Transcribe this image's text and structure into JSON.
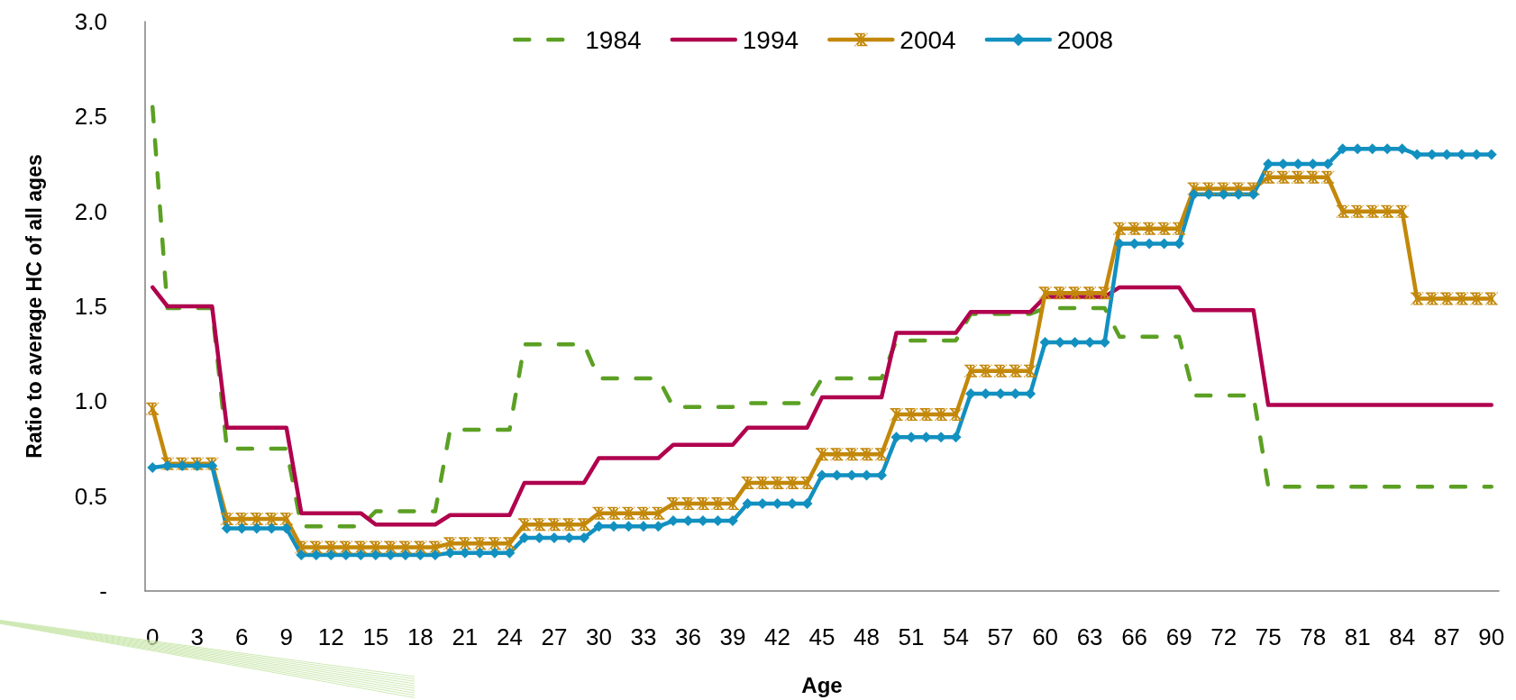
{
  "chart_data": {
    "type": "line",
    "xlabel": "Age",
    "ylabel": "Ratio to average HC of all ages",
    "x": [
      0,
      1,
      2,
      3,
      4,
      5,
      6,
      7,
      8,
      9,
      10,
      11,
      12,
      13,
      14,
      15,
      16,
      17,
      18,
      19,
      20,
      21,
      22,
      23,
      24,
      25,
      26,
      27,
      28,
      29,
      30,
      31,
      32,
      33,
      34,
      35,
      36,
      37,
      38,
      39,
      40,
      41,
      42,
      43,
      44,
      45,
      46,
      47,
      48,
      49,
      50,
      51,
      52,
      53,
      54,
      55,
      56,
      57,
      58,
      59,
      60,
      61,
      62,
      63,
      64,
      65,
      66,
      67,
      68,
      69,
      70,
      71,
      72,
      73,
      74,
      75,
      76,
      77,
      78,
      79,
      80,
      81,
      82,
      83,
      84,
      85,
      86,
      87,
      88,
      89,
      90
    ],
    "xlim": [
      -0.5,
      90.5
    ],
    "xticks": [
      0,
      3,
      6,
      9,
      12,
      15,
      18,
      21,
      24,
      27,
      30,
      33,
      36,
      39,
      42,
      45,
      48,
      51,
      54,
      57,
      60,
      63,
      66,
      69,
      72,
      75,
      78,
      81,
      84,
      87,
      90
    ],
    "ylim": [
      0,
      3
    ],
    "yticks": [
      {
        "value": 0,
        "label": "-"
      },
      0.5,
      {
        "value": 1,
        "label": "1.0"
      },
      1.5,
      {
        "value": 2,
        "label": "2.0"
      },
      2.5,
      {
        "value": 3,
        "label": "3.0"
      }
    ],
    "grid": false,
    "legend": "top",
    "series": [
      {
        "name": "1984",
        "color": "#5ba023",
        "line_style": "dashed",
        "marker": "none",
        "values": [
          2.55,
          1.49,
          1.49,
          1.49,
          1.49,
          0.75,
          0.75,
          0.75,
          0.75,
          0.75,
          0.34,
          0.34,
          0.34,
          0.34,
          0.34,
          0.42,
          0.42,
          0.42,
          0.42,
          0.42,
          0.85,
          0.85,
          0.85,
          0.85,
          0.85,
          1.3,
          1.3,
          1.3,
          1.3,
          1.3,
          1.12,
          1.12,
          1.12,
          1.12,
          1.12,
          0.97,
          0.97,
          0.97,
          0.97,
          0.97,
          0.99,
          0.99,
          0.99,
          0.99,
          0.99,
          1.12,
          1.12,
          1.12,
          1.12,
          1.12,
          1.32,
          1.32,
          1.32,
          1.32,
          1.32,
          1.46,
          1.46,
          1.46,
          1.46,
          1.46,
          1.49,
          1.49,
          1.49,
          1.49,
          1.49,
          1.34,
          1.34,
          1.34,
          1.34,
          1.34,
          1.03,
          1.03,
          1.03,
          1.03,
          1.03,
          0.55,
          0.55,
          0.55,
          0.55,
          0.55,
          0.55,
          0.55,
          0.55,
          0.55,
          0.55,
          0.55,
          0.55,
          0.55,
          0.55,
          0.55,
          0.55
        ]
      },
      {
        "name": "1994",
        "color": "#b0004e",
        "line_style": "solid",
        "marker": "none",
        "values": [
          1.6,
          1.5,
          1.5,
          1.5,
          1.5,
          0.86,
          0.86,
          0.86,
          0.86,
          0.86,
          0.41,
          0.41,
          0.41,
          0.41,
          0.41,
          0.35,
          0.35,
          0.35,
          0.35,
          0.35,
          0.4,
          0.4,
          0.4,
          0.4,
          0.4,
          0.57,
          0.57,
          0.57,
          0.57,
          0.57,
          0.7,
          0.7,
          0.7,
          0.7,
          0.7,
          0.77,
          0.77,
          0.77,
          0.77,
          0.77,
          0.86,
          0.86,
          0.86,
          0.86,
          0.86,
          1.02,
          1.02,
          1.02,
          1.02,
          1.02,
          1.36,
          1.36,
          1.36,
          1.36,
          1.36,
          1.47,
          1.47,
          1.47,
          1.47,
          1.47,
          1.55,
          1.55,
          1.55,
          1.55,
          1.55,
          1.6,
          1.6,
          1.6,
          1.6,
          1.6,
          1.48,
          1.48,
          1.48,
          1.48,
          1.48,
          0.98,
          0.98,
          0.98,
          0.98,
          0.98,
          0.98,
          0.98,
          0.98,
          0.98,
          0.98,
          0.98,
          0.98,
          0.98,
          0.98,
          0.98,
          0.98
        ]
      },
      {
        "name": "2004",
        "color": "#c3880a",
        "line_style": "solid",
        "marker": "star",
        "values": [
          0.96,
          0.67,
          0.67,
          0.67,
          0.67,
          0.38,
          0.38,
          0.38,
          0.38,
          0.38,
          0.23,
          0.23,
          0.23,
          0.23,
          0.23,
          0.23,
          0.23,
          0.23,
          0.23,
          0.23,
          0.25,
          0.25,
          0.25,
          0.25,
          0.25,
          0.35,
          0.35,
          0.35,
          0.35,
          0.35,
          0.41,
          0.41,
          0.41,
          0.41,
          0.41,
          0.46,
          0.46,
          0.46,
          0.46,
          0.46,
          0.57,
          0.57,
          0.57,
          0.57,
          0.57,
          0.72,
          0.72,
          0.72,
          0.72,
          0.72,
          0.93,
          0.93,
          0.93,
          0.93,
          0.93,
          1.16,
          1.16,
          1.16,
          1.16,
          1.16,
          1.57,
          1.57,
          1.57,
          1.57,
          1.57,
          1.91,
          1.91,
          1.91,
          1.91,
          1.91,
          2.12,
          2.12,
          2.12,
          2.12,
          2.12,
          2.18,
          2.18,
          2.18,
          2.18,
          2.18,
          2.0,
          2.0,
          2.0,
          2.0,
          2.0,
          1.54,
          1.54,
          1.54,
          1.54,
          1.54,
          1.54
        ]
      },
      {
        "name": "2008",
        "color": "#1290c0",
        "line_style": "solid",
        "marker": "diamond",
        "values": [
          0.65,
          0.66,
          0.66,
          0.66,
          0.66,
          0.33,
          0.33,
          0.33,
          0.33,
          0.33,
          0.19,
          0.19,
          0.19,
          0.19,
          0.19,
          0.19,
          0.19,
          0.19,
          0.19,
          0.19,
          0.2,
          0.2,
          0.2,
          0.2,
          0.2,
          0.28,
          0.28,
          0.28,
          0.28,
          0.28,
          0.34,
          0.34,
          0.34,
          0.34,
          0.34,
          0.37,
          0.37,
          0.37,
          0.37,
          0.37,
          0.46,
          0.46,
          0.46,
          0.46,
          0.46,
          0.61,
          0.61,
          0.61,
          0.61,
          0.61,
          0.81,
          0.81,
          0.81,
          0.81,
          0.81,
          1.04,
          1.04,
          1.04,
          1.04,
          1.04,
          1.31,
          1.31,
          1.31,
          1.31,
          1.31,
          1.83,
          1.83,
          1.83,
          1.83,
          1.83,
          2.09,
          2.09,
          2.09,
          2.09,
          2.09,
          2.25,
          2.25,
          2.25,
          2.25,
          2.25,
          2.33,
          2.33,
          2.33,
          2.33,
          2.33,
          2.3,
          2.3,
          2.3,
          2.3,
          2.3,
          2.3
        ]
      }
    ]
  }
}
